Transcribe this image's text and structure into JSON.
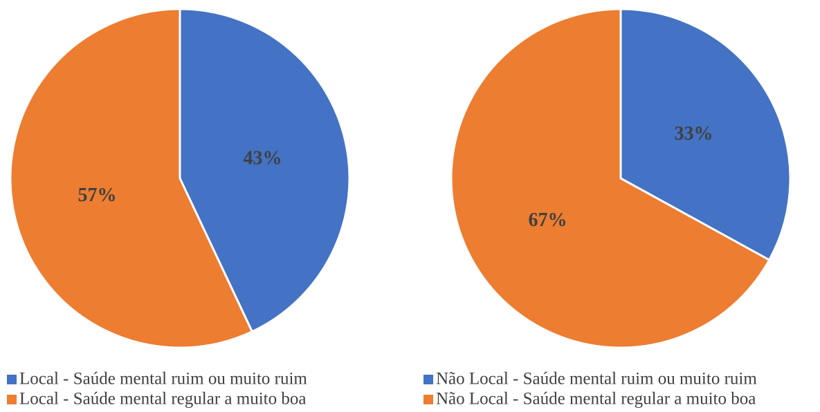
{
  "chart_data": [
    {
      "type": "pie",
      "categories": [
        "Local - Saúde mental ruim ou muito ruim",
        "Local - Saúde mental regular a muito boa"
      ],
      "values": [
        43,
        57
      ],
      "value_labels": [
        "43%",
        "57%"
      ],
      "colors": [
        "#4472c4",
        "#ed7d31"
      ]
    },
    {
      "type": "pie",
      "categories": [
        "Não Local - Saúde mental ruim ou muito ruim",
        "Não Local - Saúde mental regular a muito boa"
      ],
      "values": [
        33,
        67
      ],
      "value_labels": [
        "33%",
        "67%"
      ],
      "colors": [
        "#4472c4",
        "#ed7d31"
      ]
    }
  ]
}
